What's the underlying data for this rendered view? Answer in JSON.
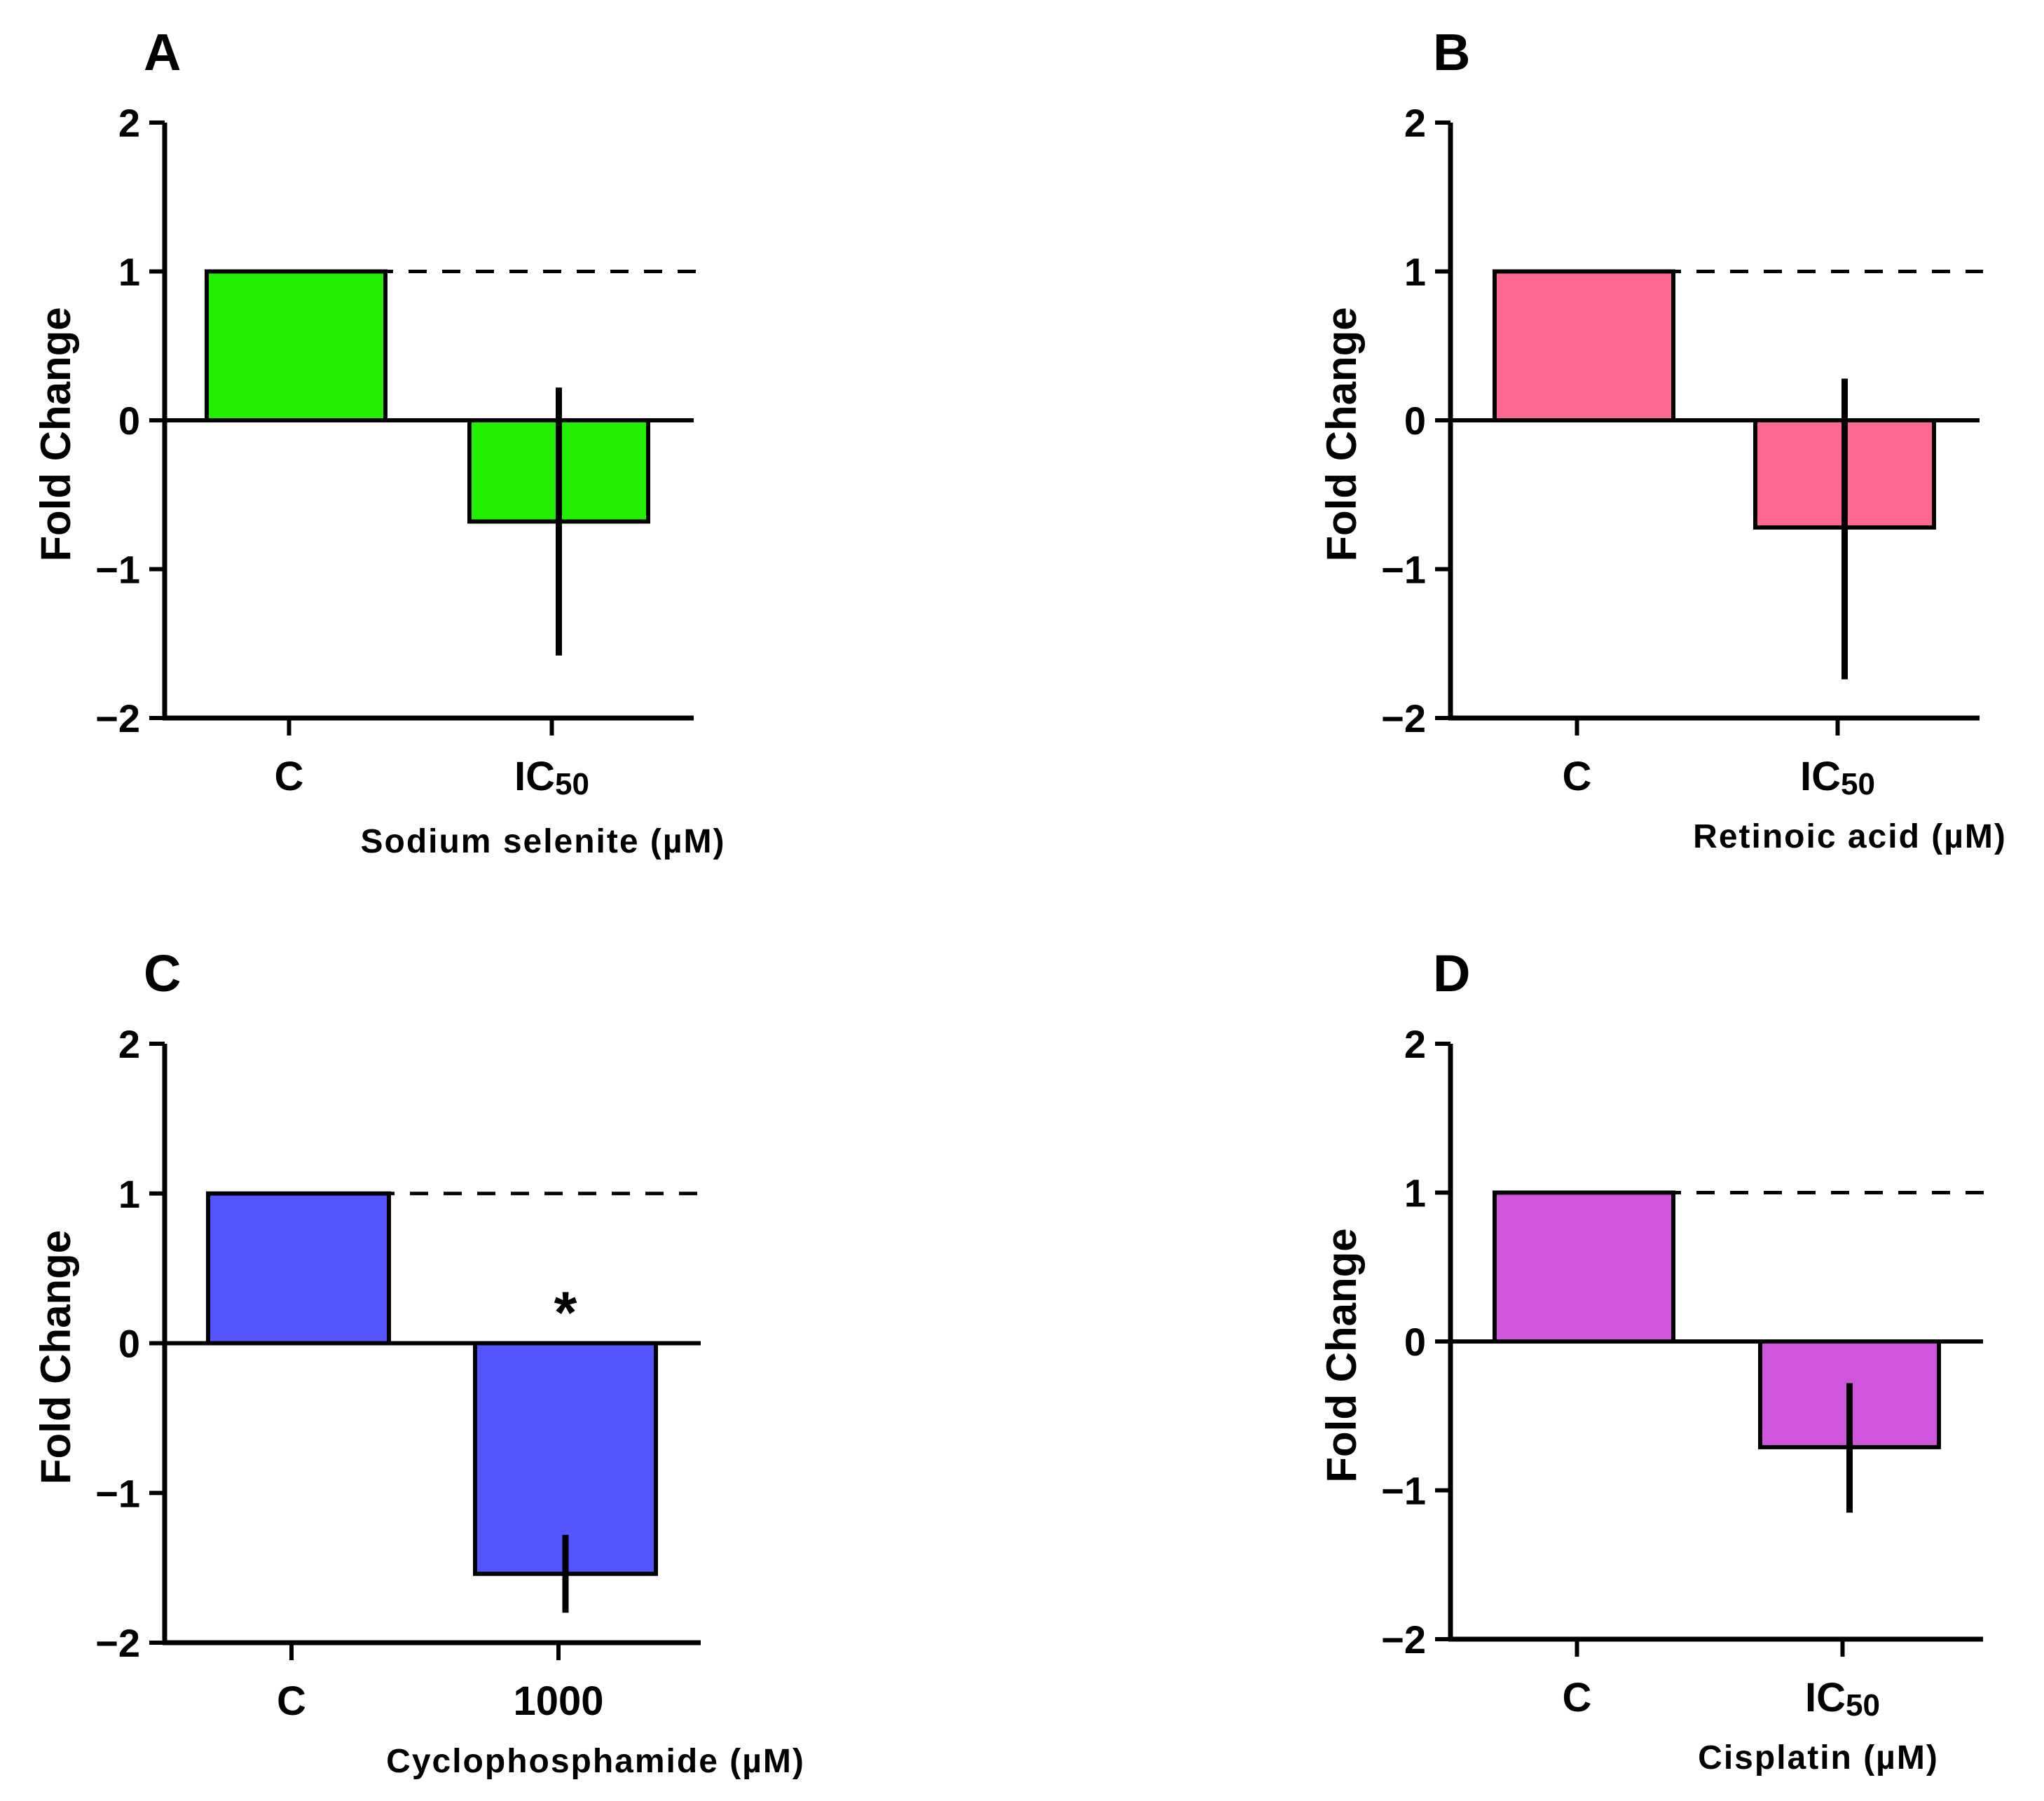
{
  "chart_data": [
    {
      "panel": "A",
      "type": "bar",
      "ylabel": "Fold Change",
      "xlabel": "Sodium selenite (µM)",
      "ylim": [
        -2,
        2
      ],
      "yticks": [
        {
          "value": 2,
          "label": "2"
        },
        {
          "value": 1,
          "label": "1"
        },
        {
          "value": 0,
          "label": "0"
        },
        {
          "value": -1,
          "label": "−1"
        },
        {
          "value": -2,
          "label": "−2"
        }
      ],
      "reference_line": 1,
      "color": "#22ee00",
      "bars": [
        {
          "label": "C",
          "sub": "",
          "value": 1.0,
          "err_low": null,
          "err_high": null,
          "sig": ""
        },
        {
          "label": "IC",
          "sub": "50",
          "value": -0.68,
          "err_low": -1.58,
          "err_high": 0.22,
          "sig": ""
        }
      ]
    },
    {
      "panel": "B",
      "type": "bar",
      "ylabel": "Fold Change",
      "xlabel": "Retinoic acid (µM)",
      "ylim": [
        -2,
        2
      ],
      "yticks": [
        {
          "value": 2,
          "label": "2"
        },
        {
          "value": 1,
          "label": "1"
        },
        {
          "value": 0,
          "label": "0"
        },
        {
          "value": -1,
          "label": "−1"
        },
        {
          "value": -2,
          "label": "−2"
        }
      ],
      "reference_line": 1,
      "color": "#ff6690",
      "bars": [
        {
          "label": "C",
          "sub": "",
          "value": 1.0,
          "err_low": null,
          "err_high": null,
          "sig": ""
        },
        {
          "label": "IC",
          "sub": "50",
          "value": -0.72,
          "err_low": -1.74,
          "err_high": 0.28,
          "sig": ""
        }
      ]
    },
    {
      "panel": "C",
      "type": "bar",
      "ylabel": "Fold Change",
      "xlabel": "Cyclophosphamide (µM)",
      "ylim": [
        -2,
        2
      ],
      "yticks": [
        {
          "value": 2,
          "label": "2"
        },
        {
          "value": 1,
          "label": "1"
        },
        {
          "value": 0,
          "label": "0"
        },
        {
          "value": -1,
          "label": "−1"
        },
        {
          "value": -2,
          "label": "−2"
        }
      ],
      "reference_line": 1,
      "color": "#5555ff",
      "bars": [
        {
          "label": "C",
          "sub": "",
          "value": 1.0,
          "err_low": null,
          "err_high": null,
          "sig": ""
        },
        {
          "label": "1000",
          "sub": "",
          "value": -1.54,
          "err_low": -1.8,
          "err_high": -1.28,
          "sig": "*"
        }
      ]
    },
    {
      "panel": "D",
      "type": "bar",
      "ylabel": "Fold Change",
      "xlabel": "Cisplatin (µM)",
      "ylim": [
        -2,
        2
      ],
      "yticks": [
        {
          "value": 2,
          "label": "2"
        },
        {
          "value": 1,
          "label": "1"
        },
        {
          "value": 0,
          "label": "0"
        },
        {
          "value": -1,
          "label": "−1"
        },
        {
          "value": -2,
          "label": "−2"
        }
      ],
      "reference_line": 1,
      "color": "#d055dd",
      "bars": [
        {
          "label": "C",
          "sub": "",
          "value": 1.0,
          "err_low": null,
          "err_high": null,
          "sig": ""
        },
        {
          "label": "IC",
          "sub": "50",
          "value": -0.71,
          "err_low": -1.15,
          "err_high": -0.28,
          "sig": ""
        }
      ]
    }
  ]
}
